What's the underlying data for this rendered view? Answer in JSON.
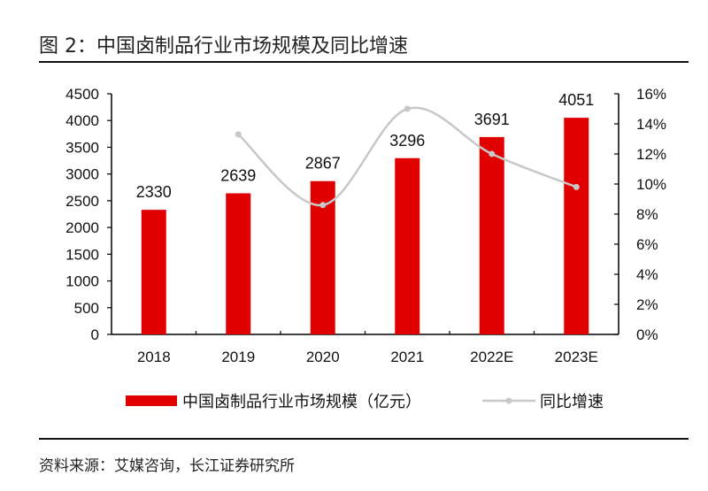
{
  "title": "图 2：中国卤制品行业市场规模及同比增速",
  "source": "资料来源：艾媒咨询，长江证券研究所",
  "colors": {
    "bar": "#e00000",
    "line": "#c8c8c8",
    "axis": "#000000"
  },
  "chart_data": {
    "type": "bar+line",
    "title": "图 2：中国卤制品行业市场规模及同比增速",
    "categories": [
      "2018",
      "2019",
      "2020",
      "2021",
      "2022E",
      "2023E"
    ],
    "series": [
      {
        "name": "中国卤制品行业市场规模（亿元）",
        "type": "bar",
        "axis": "left",
        "values": [
          2330,
          2639,
          2867,
          3296,
          3691,
          4051
        ],
        "data_labels": [
          "2330",
          "2639",
          "2867",
          "3296",
          "3691",
          "4051"
        ]
      },
      {
        "name": "同比增速",
        "type": "line",
        "axis": "right",
        "smooth": true,
        "values": [
          null,
          13.3,
          8.6,
          15.0,
          12.0,
          9.8
        ]
      }
    ],
    "y_left": {
      "range": [
        0,
        4500
      ],
      "ticks": [
        "0",
        "500",
        "1000",
        "1500",
        "2000",
        "2500",
        "3000",
        "3500",
        "4000",
        "4500"
      ]
    },
    "y_right": {
      "range": [
        0,
        16
      ],
      "ticks": [
        "0%",
        "2%",
        "4%",
        "6%",
        "8%",
        "10%",
        "12%",
        "14%",
        "16%"
      ]
    },
    "grid": false,
    "legend": "bottom"
  }
}
